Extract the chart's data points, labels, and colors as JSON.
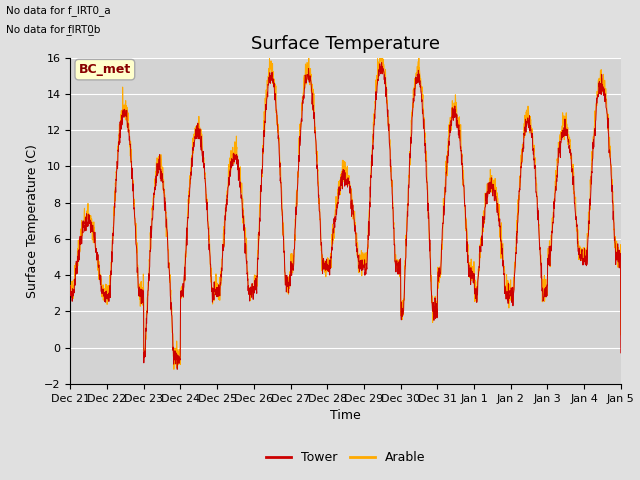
{
  "title": "Surface Temperature",
  "ylabel": "Surface Temperature (C)",
  "xlabel": "Time",
  "ylim": [
    -2,
    16
  ],
  "xlim_start": 0,
  "xlim_end": 15,
  "x_tick_labels": [
    "Dec 21",
    "Dec 22",
    "Dec 23",
    "Dec 24",
    "Dec 25",
    "Dec 26",
    "Dec 27",
    "Dec 28",
    "Dec 29",
    "Dec 30",
    "Dec 31",
    "Jan 1",
    "Jan 2",
    "Jan 3",
    "Jan 4",
    "Jan 5"
  ],
  "yticks": [
    -2,
    0,
    2,
    4,
    6,
    8,
    10,
    12,
    14,
    16
  ],
  "tower_color": "#cc0000",
  "arable_color": "#ffaa00",
  "fig_facecolor": "#e0e0e0",
  "ax_facecolor": "#d3d3d3",
  "grid_color": "#ffffff",
  "annotation_text1": "No data for f_IRT0_a",
  "annotation_text2": "No data for f͟IRT0͟b",
  "legend_box_label": "BC_met",
  "legend_box_color": "#ffffcc",
  "legend_box_edge": "#aaaaaa",
  "legend_text_color": "#880000",
  "title_fontsize": 13,
  "axis_fontsize": 9,
  "tick_fontsize": 8
}
